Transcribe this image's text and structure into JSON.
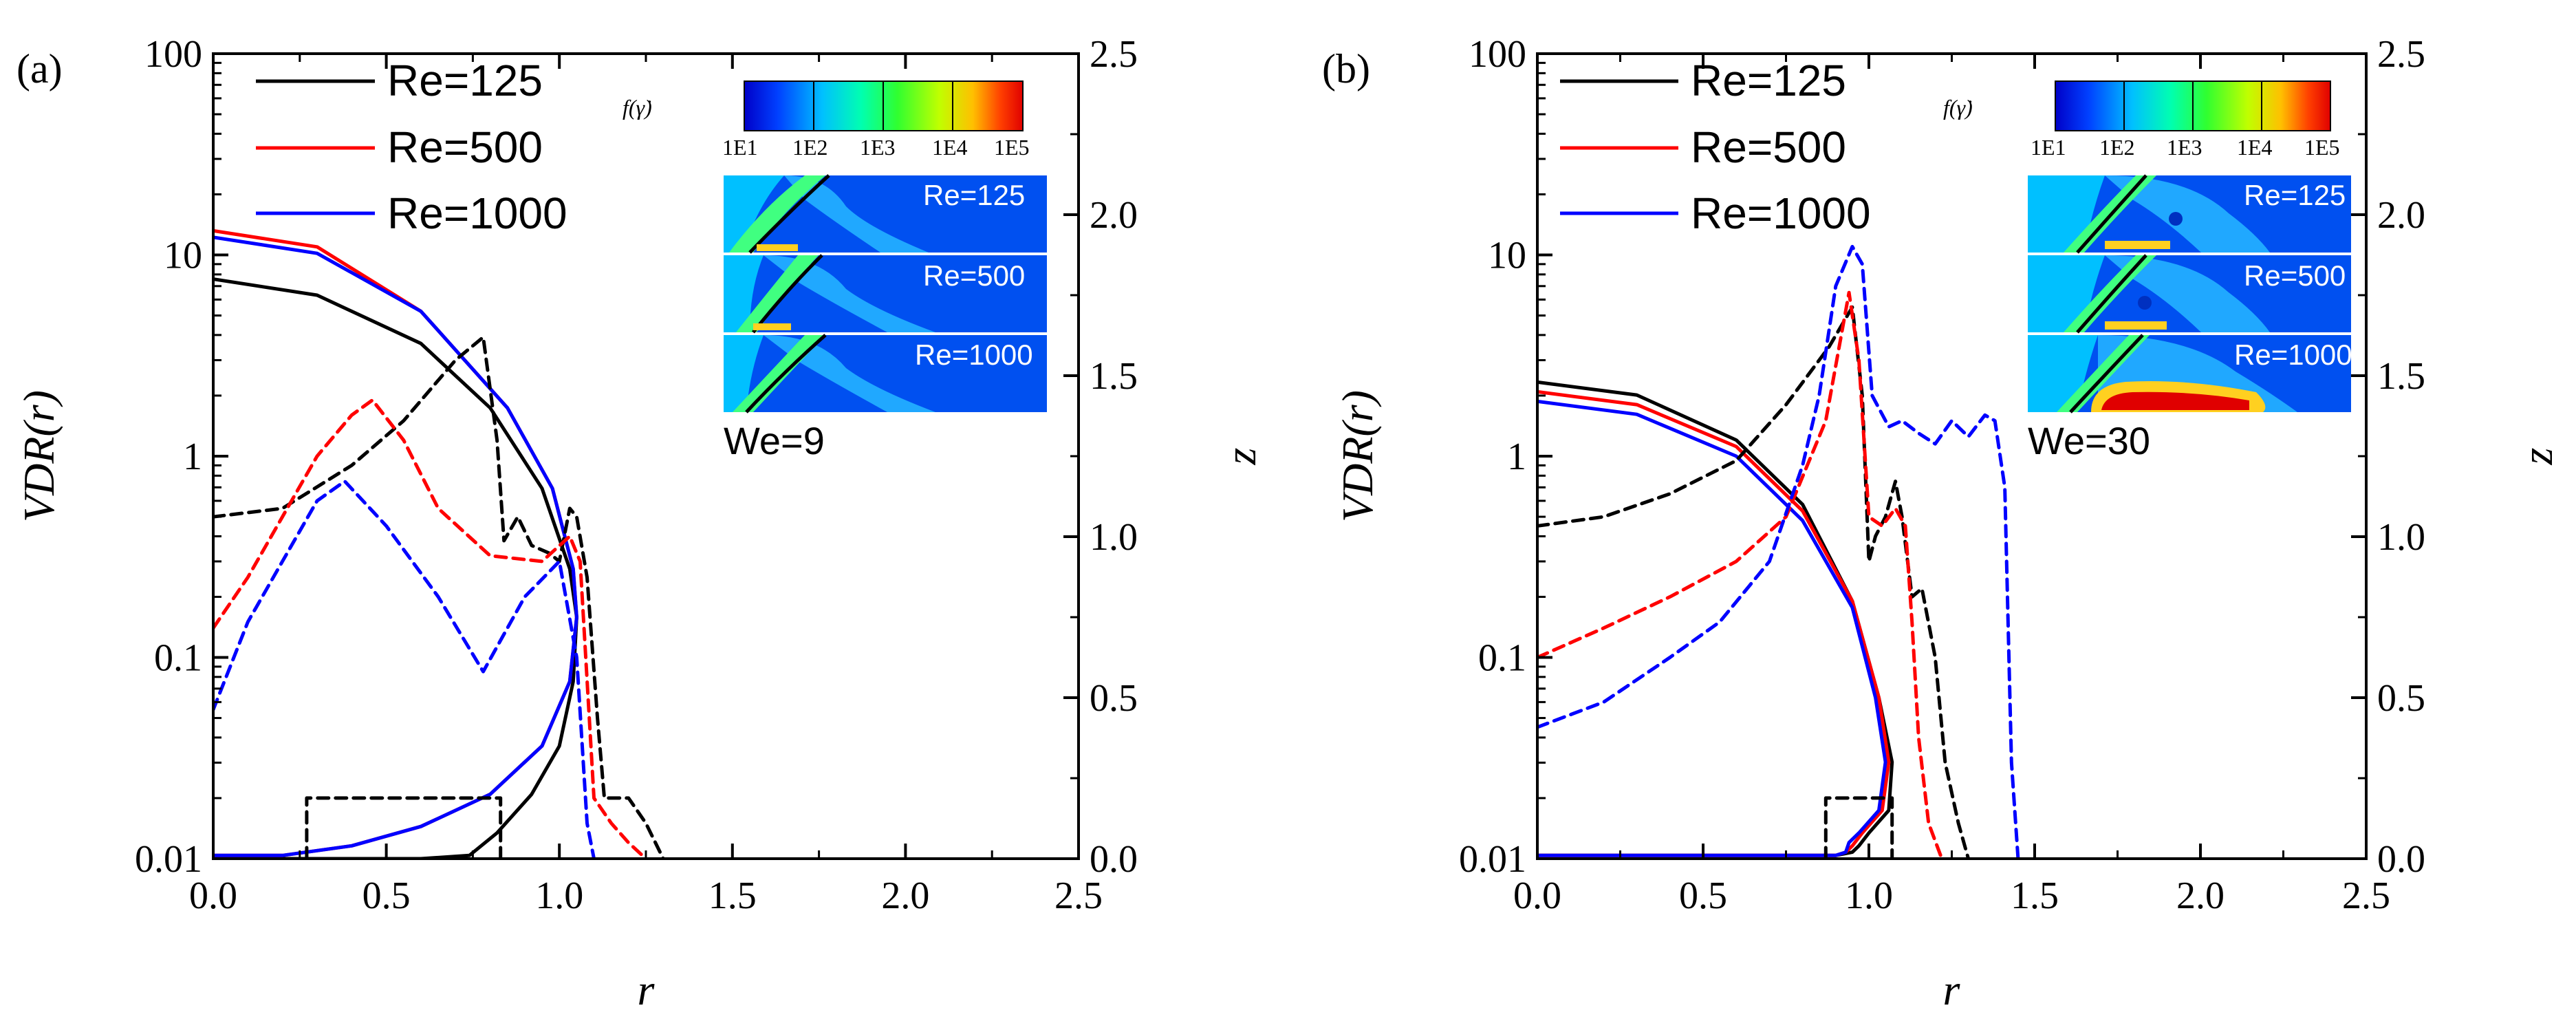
{
  "chart_data": [
    {
      "type": "line",
      "panel_label": "(a)",
      "xlabel": "r",
      "ylabel": "VDR(r)",
      "y2label": "z",
      "xlim": [
        0,
        2.5
      ],
      "ylim": [
        0.01,
        100
      ],
      "y2lim": [
        0,
        2.5
      ],
      "yscale": "log",
      "xticks": [
        "0.0",
        "0.5",
        "1.0",
        "1.5",
        "2.0",
        "2.5"
      ],
      "yticks": [
        "0.01",
        "0.1",
        "1",
        "10",
        "100"
      ],
      "y2ticks": [
        "0.0",
        "0.5",
        "1.0",
        "1.5",
        "2.0",
        "2.5"
      ],
      "legend": {
        "placement": "top-left",
        "entries": [
          "Re=125",
          "Re=500",
          "Re=1000"
        ]
      },
      "colors": {
        "Re=125": "#000000",
        "Re=500": "#ff0000",
        "Re=1000": "#0000ff"
      },
      "inset": {
        "colorbar_label": "f(γ̇)",
        "colorbar_ticks": [
          "1E1",
          "1E2",
          "1E3",
          "1E4",
          "1E5"
        ],
        "rows": [
          "Re=125",
          "Re=500",
          "Re=1000"
        ],
        "annotation": "We=9"
      },
      "series": [
        {
          "name": "Re=125",
          "kind": "interface (solid, right axis z)",
          "points": [
            [
              0,
              1.8
            ],
            [
              0.3,
              1.75
            ],
            [
              0.6,
              1.6
            ],
            [
              0.8,
              1.4
            ],
            [
              0.95,
              1.15
            ],
            [
              1.03,
              0.9
            ],
            [
              1.05,
              0.75
            ],
            [
              1.04,
              0.55
            ],
            [
              1.0,
              0.35
            ],
            [
              0.92,
              0.2
            ],
            [
              0.82,
              0.08
            ],
            [
              0.74,
              0.01
            ],
            [
              0.6,
              0.0
            ],
            [
              0,
              0.0
            ]
          ]
        },
        {
          "name": "Re=500",
          "kind": "interface (solid, right axis z)",
          "points": [
            [
              0,
              1.95
            ],
            [
              0.3,
              1.9
            ],
            [
              0.6,
              1.7
            ],
            [
              0.85,
              1.4
            ],
            [
              0.98,
              1.15
            ],
            [
              1.04,
              0.9
            ],
            [
              1.05,
              0.75
            ],
            [
              1.03,
              0.55
            ],
            [
              0.95,
              0.35
            ],
            [
              0.8,
              0.2
            ],
            [
              0.6,
              0.1
            ],
            [
              0.4,
              0.04
            ],
            [
              0.2,
              0.01
            ],
            [
              0,
              0.01
            ]
          ]
        },
        {
          "name": "Re=1000",
          "kind": "interface (solid, right axis z)",
          "points": [
            [
              0,
              1.93
            ],
            [
              0.3,
              1.88
            ],
            [
              0.6,
              1.7
            ],
            [
              0.85,
              1.4
            ],
            [
              0.98,
              1.15
            ],
            [
              1.04,
              0.9
            ],
            [
              1.05,
              0.75
            ],
            [
              1.03,
              0.55
            ],
            [
              0.95,
              0.35
            ],
            [
              0.8,
              0.2
            ],
            [
              0.6,
              0.1
            ],
            [
              0.4,
              0.04
            ],
            [
              0.2,
              0.01
            ],
            [
              0,
              0.01
            ]
          ]
        },
        {
          "name": "Re=125",
          "kind": "VDR (dashed, left axis)",
          "points": [
            [
              0,
              0.5
            ],
            [
              0.2,
              0.55
            ],
            [
              0.4,
              0.9
            ],
            [
              0.55,
              1.5
            ],
            [
              0.7,
              3.0
            ],
            [
              0.78,
              3.9
            ],
            [
              0.82,
              1.2
            ],
            [
              0.84,
              0.38
            ],
            [
              0.88,
              0.5
            ],
            [
              0.92,
              0.36
            ],
            [
              0.97,
              0.33
            ],
            [
              1.0,
              0.3
            ],
            [
              1.03,
              0.55
            ],
            [
              1.05,
              0.5
            ],
            [
              1.08,
              0.25
            ],
            [
              1.11,
              0.05
            ],
            [
              1.13,
              0.02
            ],
            [
              1.2,
              0.02
            ],
            [
              1.25,
              0.015
            ],
            [
              1.3,
              0.01
            ]
          ]
        },
        {
          "name": "Re=500",
          "kind": "VDR (dashed, left axis)",
          "points": [
            [
              0,
              0.14
            ],
            [
              0.1,
              0.25
            ],
            [
              0.2,
              0.5
            ],
            [
              0.3,
              1.0
            ],
            [
              0.4,
              1.6
            ],
            [
              0.46,
              1.9
            ],
            [
              0.55,
              1.2
            ],
            [
              0.65,
              0.55
            ],
            [
              0.8,
              0.32
            ],
            [
              0.95,
              0.3
            ],
            [
              1.03,
              0.4
            ],
            [
              1.06,
              0.3
            ],
            [
              1.1,
              0.02
            ],
            [
              1.15,
              0.015
            ],
            [
              1.2,
              0.012
            ],
            [
              1.25,
              0.01
            ]
          ]
        },
        {
          "name": "Re=1000",
          "kind": "VDR (dashed, left axis)",
          "points": [
            [
              0,
              0.055
            ],
            [
              0.1,
              0.15
            ],
            [
              0.2,
              0.3
            ],
            [
              0.3,
              0.6
            ],
            [
              0.38,
              0.75
            ],
            [
              0.5,
              0.45
            ],
            [
              0.65,
              0.2
            ],
            [
              0.78,
              0.085
            ],
            [
              0.9,
              0.2
            ],
            [
              1.0,
              0.3
            ],
            [
              1.05,
              0.1
            ],
            [
              1.08,
              0.015
            ],
            [
              1.1,
              0.01
            ]
          ]
        },
        {
          "name": "",
          "kind": "zoom box (dashed, left axis)",
          "points": [
            [
              0.27,
              0.01
            ],
            [
              0.27,
              0.02
            ],
            [
              0.83,
              0.02
            ],
            [
              0.83,
              0.01
            ]
          ]
        }
      ]
    },
    {
      "type": "line",
      "panel_label": "(b)",
      "xlabel": "r",
      "ylabel": "VDR(r)",
      "y2label": "z",
      "xlim": [
        0,
        2.5
      ],
      "ylim": [
        0.01,
        100
      ],
      "y2lim": [
        0,
        2.5
      ],
      "yscale": "log",
      "xticks": [
        "0.0",
        "0.5",
        "1.0",
        "1.5",
        "2.0",
        "2.5"
      ],
      "yticks": [
        "0.01",
        "0.1",
        "1",
        "10",
        "100"
      ],
      "y2ticks": [
        "0.0",
        "0.5",
        "1.0",
        "1.5",
        "2.0",
        "2.5"
      ],
      "legend": {
        "placement": "top-left",
        "entries": [
          "Re=125",
          "Re=500",
          "Re=1000"
        ]
      },
      "colors": {
        "Re=125": "#000000",
        "Re=500": "#ff0000",
        "Re=1000": "#0000ff"
      },
      "inset": {
        "colorbar_label": "f(γ̇)",
        "colorbar_ticks": [
          "1E1",
          "1E2",
          "1E3",
          "1E4",
          "1E5"
        ],
        "rows": [
          "Re=125",
          "Re=500",
          "Re=1000"
        ],
        "annotation": "We=30"
      },
      "series": [
        {
          "name": "Re=125",
          "kind": "interface (solid, right axis z)",
          "points": [
            [
              0,
              1.48
            ],
            [
              0.3,
              1.44
            ],
            [
              0.6,
              1.3
            ],
            [
              0.8,
              1.1
            ],
            [
              0.95,
              0.8
            ],
            [
              1.03,
              0.5
            ],
            [
              1.07,
              0.3
            ],
            [
              1.06,
              0.15
            ],
            [
              1.0,
              0.08
            ],
            [
              0.97,
              0.04
            ],
            [
              0.95,
              0.02
            ],
            [
              0.9,
              0.01
            ],
            [
              0.5,
              0.01
            ],
            [
              0,
              0.01
            ]
          ]
        },
        {
          "name": "Re=500",
          "kind": "interface (solid, right axis z)",
          "points": [
            [
              0,
              1.45
            ],
            [
              0.3,
              1.41
            ],
            [
              0.6,
              1.28
            ],
            [
              0.8,
              1.08
            ],
            [
              0.95,
              0.8
            ],
            [
              1.03,
              0.5
            ],
            [
              1.06,
              0.3
            ],
            [
              1.04,
              0.15
            ],
            [
              0.98,
              0.08
            ],
            [
              0.95,
              0.04
            ],
            [
              0.93,
              0.02
            ],
            [
              0.9,
              0.01
            ],
            [
              0,
              0.01
            ]
          ]
        },
        {
          "name": "Re=1000",
          "kind": "interface (solid, right axis z)",
          "points": [
            [
              0,
              1.42
            ],
            [
              0.3,
              1.38
            ],
            [
              0.6,
              1.25
            ],
            [
              0.8,
              1.05
            ],
            [
              0.95,
              0.78
            ],
            [
              1.02,
              0.5
            ],
            [
              1.05,
              0.3
            ],
            [
              1.03,
              0.15
            ],
            [
              0.97,
              0.08
            ],
            [
              0.94,
              0.05
            ],
            [
              0.93,
              0.02
            ],
            [
              0.9,
              0.01
            ],
            [
              0,
              0.01
            ]
          ]
        },
        {
          "name": "Re=125",
          "kind": "VDR (dashed, left axis)",
          "points": [
            [
              0,
              0.45
            ],
            [
              0.2,
              0.5
            ],
            [
              0.4,
              0.65
            ],
            [
              0.6,
              0.95
            ],
            [
              0.75,
              1.8
            ],
            [
              0.88,
              3.5
            ],
            [
              0.95,
              5.5
            ],
            [
              0.98,
              2.0
            ],
            [
              1.0,
              0.3
            ],
            [
              1.02,
              0.4
            ],
            [
              1.05,
              0.5
            ],
            [
              1.08,
              0.75
            ],
            [
              1.1,
              0.5
            ],
            [
              1.13,
              0.2
            ],
            [
              1.16,
              0.22
            ],
            [
              1.2,
              0.1
            ],
            [
              1.23,
              0.03
            ],
            [
              1.27,
              0.015
            ],
            [
              1.3,
              0.01
            ]
          ]
        },
        {
          "name": "Re=500",
          "kind": "VDR (dashed, left axis)",
          "points": [
            [
              0,
              0.1
            ],
            [
              0.2,
              0.14
            ],
            [
              0.4,
              0.2
            ],
            [
              0.6,
              0.3
            ],
            [
              0.75,
              0.5
            ],
            [
              0.87,
              1.5
            ],
            [
              0.94,
              6.5
            ],
            [
              0.97,
              3.0
            ],
            [
              1.0,
              0.5
            ],
            [
              1.04,
              0.45
            ],
            [
              1.08,
              0.55
            ],
            [
              1.11,
              0.45
            ],
            [
              1.13,
              0.15
            ],
            [
              1.15,
              0.04
            ],
            [
              1.18,
              0.015
            ],
            [
              1.22,
              0.01
            ]
          ]
        },
        {
          "name": "Re=1000",
          "kind": "VDR (dashed, left axis)",
          "points": [
            [
              0,
              0.045
            ],
            [
              0.2,
              0.06
            ],
            [
              0.4,
              0.1
            ],
            [
              0.55,
              0.15
            ],
            [
              0.7,
              0.3
            ],
            [
              0.8,
              0.9
            ],
            [
              0.85,
              2.0
            ],
            [
              0.9,
              7.0
            ],
            [
              0.95,
              11.0
            ],
            [
              0.98,
              9.0
            ],
            [
              1.01,
              2.0
            ],
            [
              1.06,
              1.4
            ],
            [
              1.1,
              1.5
            ],
            [
              1.15,
              1.3
            ],
            [
              1.2,
              1.15
            ],
            [
              1.25,
              1.5
            ],
            [
              1.3,
              1.25
            ],
            [
              1.35,
              1.6
            ],
            [
              1.38,
              1.5
            ],
            [
              1.41,
              0.7
            ],
            [
              1.43,
              0.03
            ],
            [
              1.45,
              0.01
            ]
          ]
        },
        {
          "name": "",
          "kind": "zoom box (dashed, left axis)",
          "points": [
            [
              0.87,
              0.01
            ],
            [
              0.87,
              0.02
            ],
            [
              1.07,
              0.02
            ],
            [
              1.07,
              0.01
            ]
          ]
        }
      ]
    }
  ]
}
